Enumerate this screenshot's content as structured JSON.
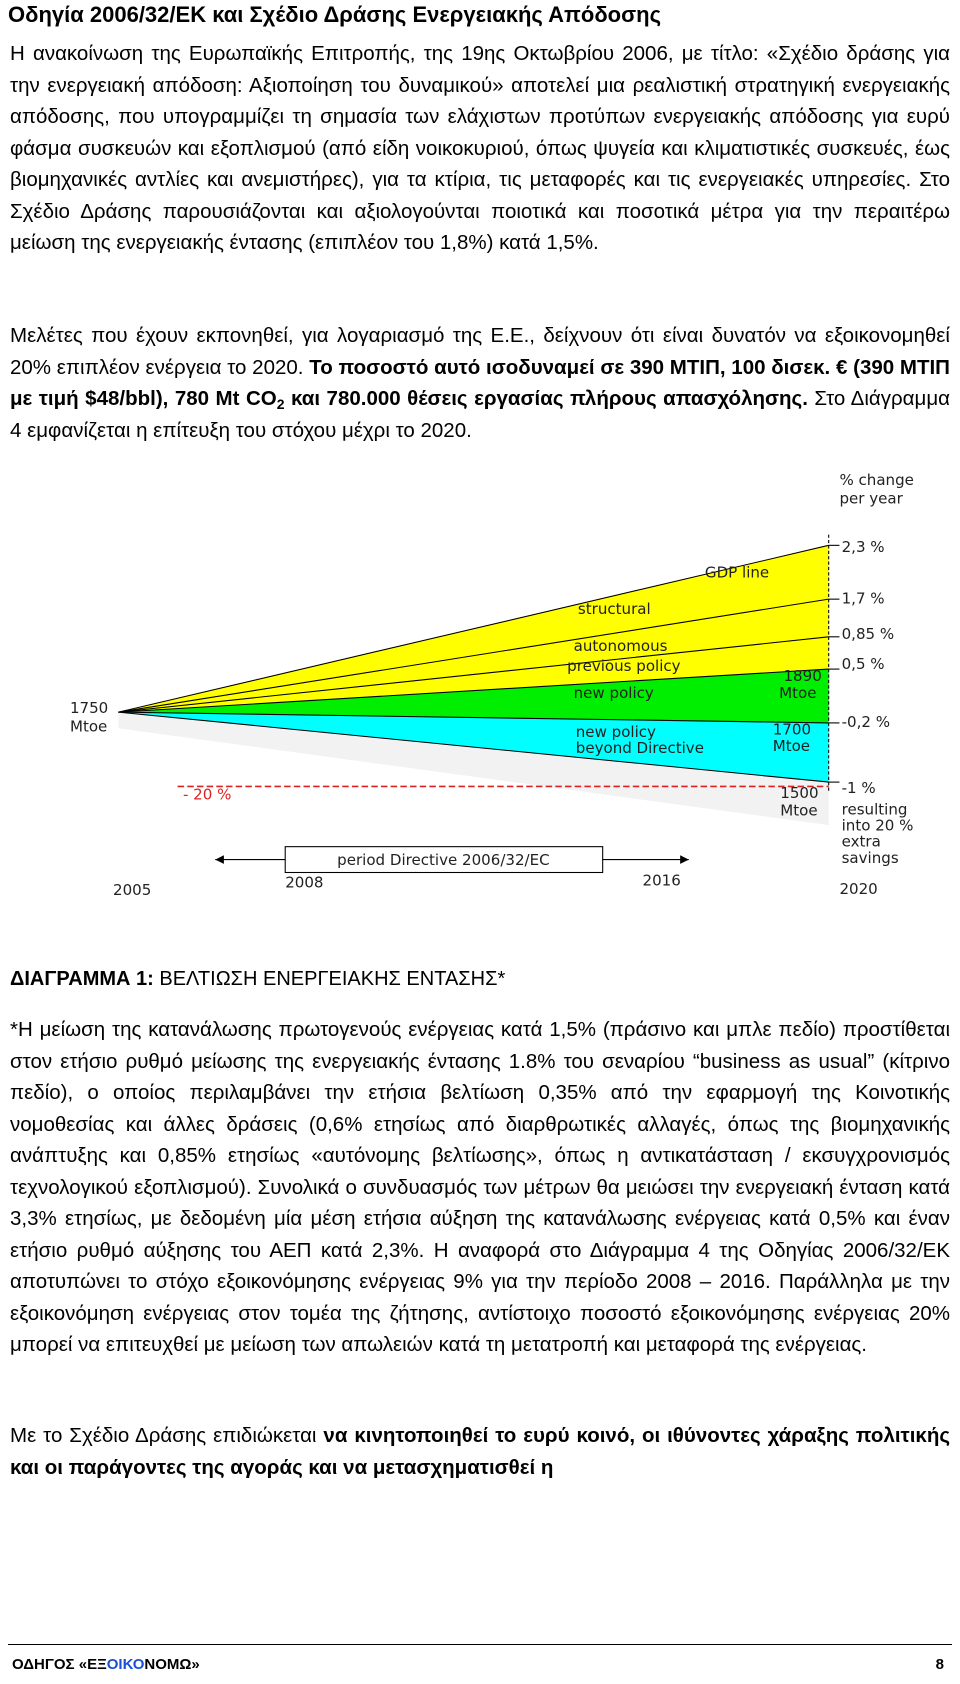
{
  "title": "Οδηγία 2006/32/ΕΚ και Σχέδιο Δράσης Ενεργειακής Απόδοσης",
  "paragraph_1": [
    {
      "text": "Η ανακοίνωση της Ευρωπαϊκής Επιτροπής, της 19ης Οκτωβρίου 2006, με τίτλο: «Σχέδιο δράσης για την ενεργειακή απόδοση: Αξιοποίηση του δυναμικού» αποτελεί μια ρεαλιστική στρατηγική ενεργειακής απόδοσης, που υπογραμμίζει τη σημασία των ελάχιστων προτύπων ενεργειακής απόδοσης για ευρύ φάσμα συσκευών και εξοπλισμού (από είδη νοικοκυριού, όπως ψυγεία και κλιματιστικές συσκευές, έως βιομηχανικές αντλίες και ανεμιστήρες), για τα κτίρια, τις μεταφορές και τις ενεργειακές υπηρεσίες. Στο Σχέδιο Δράσης παρουσιάζονται και αξιολογούνται ποιοτικά και ποσοτικά μέτρα για την περαιτέρω μείωση της ενεργειακής έντασης (επιπλέον του 1,8%) κατά 1,5%."
    }
  ],
  "paragraph_2": [
    {
      "text": "Μελέτες που έχουν εκπονηθεί, για λογαριασμό της Ε.Ε., δείχνουν ότι είναι δυνατόν να εξοικονομηθεί 20% επιπλέον ενέργεια το 2020. "
    },
    {
      "text": "Το ποσοστό αυτό ισοδυναμεί σε 390 ΜΤΙΠ, 100 δισεκ. € (390 ΜΤΙΠ με τιμή $48/bbl), 780 Mt CO",
      "bold": true
    },
    {
      "text": "2",
      "bold": true,
      "sub": true
    },
    {
      "text": " και 780.000 θέσεις εργασίας πλήρους απασχόλησης.",
      "bold": true
    },
    {
      "text": " Στο Διάγραμμα 4 εμφανίζεται η επίτευξη του στόχου μέχρι το 2020."
    }
  ],
  "diagram": {
    "unit_label": [
      "% change",
      "per year"
    ],
    "right_labels": [
      "2,3 %",
      "1,7 %",
      "0,85 %",
      "0,5 %",
      "-0,2 %",
      "-1 %"
    ],
    "resulting": [
      "resulting",
      "into 20 %",
      "extra",
      "savings"
    ],
    "gdp_line": "GDP line",
    "structural": "structural",
    "autonomous": "autonomous",
    "previous_policy": "previous policy",
    "new_policy": "new policy",
    "new_policy_beyond": [
      "new policy",
      "beyond Directive"
    ],
    "mtoe_1890": [
      "1890",
      "Mtoe"
    ],
    "mtoe_1700": [
      "1700",
      "Mtoe"
    ],
    "mtoe_1500": [
      "1500",
      "Mtoe"
    ],
    "mtoe_1750": [
      "1750",
      "Mtoe"
    ],
    "minus_20": "- 20 %",
    "period": "period Directive 2006/32/EC",
    "years": [
      "2005",
      "2008",
      "2016",
      "2020"
    ]
  },
  "caption": [
    {
      "text": "ΔΙΑΓΡΑΜΜΑ 1:",
      "bold": true
    },
    {
      "text": " ΒΕΛΤΙΩΣΗ ΕΝΕΡΓΕΙΑΚΗΣ ΕΝΤΑΣΗΣ*"
    }
  ],
  "note": [
    {
      "text": "*Η μείωση της κατανάλωσης πρωτογενούς ενέργειας κατά 1,5% (πράσινο και μπλε πεδίο) προστίθεται στον ετήσιο ρυθμό μείωσης της ενεργειακής έντασης 1.8% του σεναρίου “business as usual” (κίτρινο πεδίο), ο οποίος περιλαμβάνει την ετήσια βελτίωση 0,35% από την εφαρμογή της Κοινοτικής νομοθεσίας και άλλες δράσεις (0,6% ετησίως από διαρθρωτικές αλλαγές, όπως της βιομηχανικής ανάπτυξης και 0,85% ετησίως «αυτόνομης βελτίωσης», όπως η αντικατάσταση / εκσυγχρονισμός τεχνολογικού εξοπλισμού). Συνολικά ο συνδυασμός των μέτρων θα μειώσει την ενεργειακή ένταση κατά 3,3% ετησίως, με δεδομένη μία μέση ετήσια αύξηση της κατανάλωσης ενέργειας κατά 0,5% και έναν ετήσιο ρυθμό αύξησης του ΑΕΠ κατά 2,3%. Η αναφορά στο Διάγραμμα 4 της Οδηγίας 2006/32/ΕΚ αποτυπώνει το στόχο εξοικονόμησης ενέργειας 9% για την περίοδο 2008 – 2016. Παράλληλα με την εξοικονόμηση ενέργειας στον τομέα της ζήτησης, αντίστοιχο ποσοστό εξοικονόμησης ενέργειας 20% μπορεί να επιτευχθεί με μείωση των απωλειών κατά τη μετατροπή και μεταφορά της ενέργειας."
    }
  ],
  "paragraph_3": [
    {
      "text": "Με το Σχέδιο Δράσης επιδιώκεται "
    },
    {
      "text": "να κινητοποιηθεί το ευρύ κοινό, οι ιθύνοντες χάραξης πολιτικής και οι παράγοντες της αγοράς και να μετασχηματισθεί η",
      "bold": true
    }
  ],
  "footer": {
    "brand": [
      {
        "text": "ΟΔΗΓΟΣ «ΕΞ"
      },
      {
        "text": "ΟΙΚΟ",
        "blue": true
      },
      {
        "text": "ΝΟΜΩ»"
      }
    ],
    "page": "8"
  }
}
